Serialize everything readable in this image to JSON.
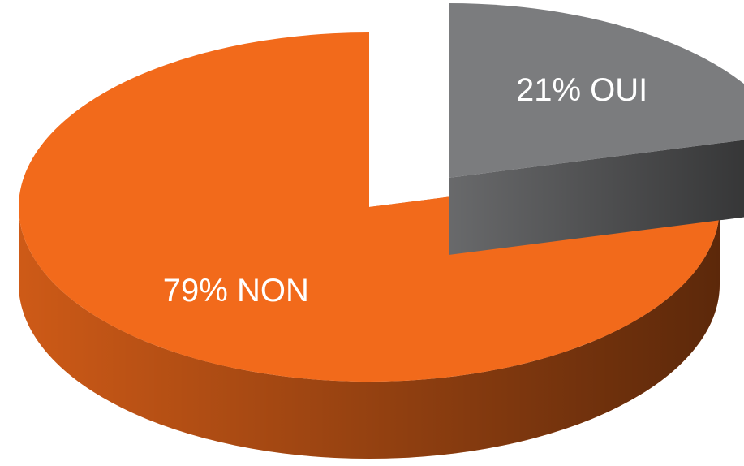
{
  "chart_data": {
    "type": "pie",
    "values": [
      21,
      79
    ],
    "value_labels": [
      "21% OUI",
      "79% NON"
    ],
    "colors": [
      "#7b7c7e",
      "#f26a1b"
    ]
  }
}
